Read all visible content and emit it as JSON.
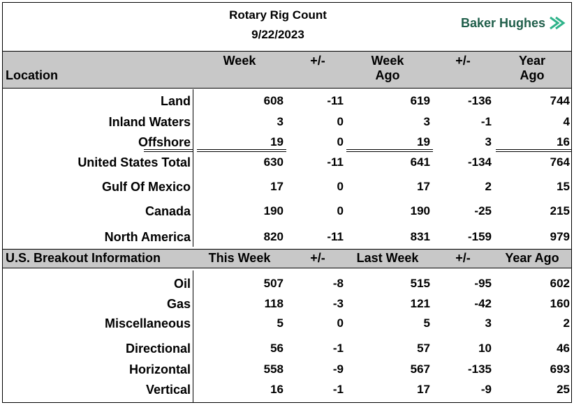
{
  "report": {
    "title": "Rotary Rig Count",
    "date": "9/22/2023"
  },
  "brand": {
    "name": "Baker Hughes",
    "color": "#1f5e4a"
  },
  "location_section": {
    "label": "Location",
    "headers": [
      {
        "line1": "Week",
        "line2": ""
      },
      {
        "line1": "+/-",
        "line2": ""
      },
      {
        "line1": "Week",
        "line2": "Ago"
      },
      {
        "line1": "+/-",
        "line2": ""
      },
      {
        "line1": "Year",
        "line2": "Ago"
      }
    ],
    "rows": [
      {
        "label": "Land",
        "values": [
          "608",
          "-11",
          "619",
          "-136",
          "744"
        ]
      },
      {
        "label": "Inland Waters",
        "values": [
          "3",
          "0",
          "3",
          "-1",
          "4"
        ]
      },
      {
        "label": "Offshore",
        "values": [
          "19",
          "0",
          "19",
          "3",
          "16"
        ]
      },
      {
        "label": "United States Total",
        "values": [
          "630",
          "-11",
          "641",
          "-134",
          "764"
        ]
      },
      {
        "label": "Gulf Of Mexico",
        "values": [
          "17",
          "0",
          "17",
          "2",
          "15"
        ]
      },
      {
        "label": "Canada",
        "values": [
          "190",
          "0",
          "190",
          "-25",
          "215"
        ]
      },
      {
        "label": "North America",
        "values": [
          "820",
          "-11",
          "831",
          "-159",
          "979"
        ]
      }
    ]
  },
  "breakout_section": {
    "label": "U.S. Breakout Information",
    "headers": [
      "This Week",
      "+/-",
      "Last Week",
      "+/-",
      "Year Ago"
    ],
    "rows": [
      {
        "label": "Oil",
        "values": [
          "507",
          "-8",
          "515",
          "-95",
          "602"
        ]
      },
      {
        "label": "Gas",
        "values": [
          "118",
          "-3",
          "121",
          "-42",
          "160"
        ]
      },
      {
        "label": "Miscellaneous",
        "values": [
          "5",
          "0",
          "5",
          "3",
          "2"
        ]
      },
      {
        "label": "Directional",
        "values": [
          "56",
          "-1",
          "57",
          "10",
          "46"
        ]
      },
      {
        "label": "Horizontal",
        "values": [
          "558",
          "-9",
          "567",
          "-135",
          "693"
        ]
      },
      {
        "label": "Vertical",
        "values": [
          "16",
          "-1",
          "17",
          "-9",
          "25"
        ]
      }
    ]
  }
}
